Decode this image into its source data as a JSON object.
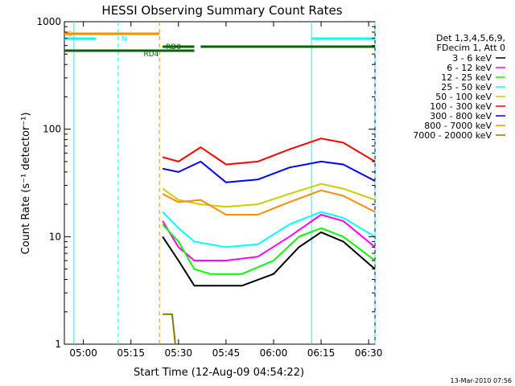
{
  "chart_data": {
    "type": "line",
    "title": "HESSI Observing Summary Count Rates",
    "xlabel": "Start Time (12-Aug-09 04:54:22)",
    "ylabel": "Count Rate (s⁻¹ detector⁻¹)",
    "y_scale": "log",
    "ylim": [
      1,
      1000
    ],
    "x_unit": "minutes",
    "xlim": [
      "04:54",
      "06:32"
    ],
    "x_ticks": [
      {
        "t": "05:00",
        "label": "05:00"
      },
      {
        "t": "05:15",
        "label": "05:15"
      },
      {
        "t": "05:30",
        "label": "05:30"
      },
      {
        "t": "05:45",
        "label": "05:45"
      },
      {
        "t": "06:00",
        "label": "06:00"
      },
      {
        "t": "06:15",
        "label": "06:15"
      },
      {
        "t": "06:30",
        "label": "06:30"
      }
    ],
    "y_ticks": [
      {
        "v": 1,
        "label": "1"
      },
      {
        "v": 10,
        "label": "10"
      },
      {
        "v": 100,
        "label": "100"
      },
      {
        "v": 1000,
        "label": "1000"
      }
    ],
    "legend_header": [
      "Det 1,3,4,5,6,9,",
      "FDecim 1, Att 0"
    ],
    "legend_position": "top-right",
    "series": [
      {
        "name": "3 - 6 keV",
        "color": "#000000",
        "points": [
          [
            "05:25",
            10
          ],
          [
            "05:30",
            6
          ],
          [
            "05:35",
            3.5
          ],
          [
            "05:40",
            3.5
          ],
          [
            "05:50",
            3.5
          ],
          [
            "06:00",
            4.5
          ],
          [
            "06:08",
            8
          ],
          [
            "06:15",
            11
          ],
          [
            "06:22",
            9
          ],
          [
            "06:32",
            5
          ]
        ]
      },
      {
        "name": "6 - 12 keV",
        "color": "#ff00ff",
        "points": [
          [
            "05:25",
            14
          ],
          [
            "05:30",
            8
          ],
          [
            "05:35",
            6
          ],
          [
            "05:45",
            6
          ],
          [
            "05:55",
            6.5
          ],
          [
            "06:05",
            10
          ],
          [
            "06:15",
            16
          ],
          [
            "06:22",
            14
          ],
          [
            "06:32",
            8
          ]
        ]
      },
      {
        "name": "12 - 25 keV",
        "color": "#00ff00",
        "points": [
          [
            "05:25",
            13
          ],
          [
            "05:30",
            9
          ],
          [
            "05:35",
            5
          ],
          [
            "05:40",
            4.5
          ],
          [
            "05:50",
            4.5
          ],
          [
            "06:00",
            6
          ],
          [
            "06:08",
            10
          ],
          [
            "06:15",
            12
          ],
          [
            "06:22",
            10
          ],
          [
            "06:32",
            6
          ]
        ]
      },
      {
        "name": "25 - 50 keV",
        "color": "#00ffff",
        "points": [
          [
            "05:25",
            17
          ],
          [
            "05:30",
            12
          ],
          [
            "05:35",
            9
          ],
          [
            "05:45",
            8
          ],
          [
            "05:55",
            8.5
          ],
          [
            "06:05",
            13
          ],
          [
            "06:15",
            17
          ],
          [
            "06:22",
            15
          ],
          [
            "06:32",
            10
          ]
        ]
      },
      {
        "name": "50 - 100 keV",
        "color": "#cccc00",
        "points": [
          [
            "05:25",
            28
          ],
          [
            "05:30",
            22
          ],
          [
            "05:37",
            20
          ],
          [
            "05:45",
            19
          ],
          [
            "05:55",
            20
          ],
          [
            "06:05",
            25
          ],
          [
            "06:15",
            31
          ],
          [
            "06:22",
            28
          ],
          [
            "06:32",
            22
          ]
        ]
      },
      {
        "name": "100 - 300 keV",
        "color": "#ff0000",
        "points": [
          [
            "05:25",
            55
          ],
          [
            "05:30",
            50
          ],
          [
            "05:37",
            68
          ],
          [
            "05:45",
            47
          ],
          [
            "05:55",
            50
          ],
          [
            "06:05",
            65
          ],
          [
            "06:15",
            82
          ],
          [
            "06:22",
            75
          ],
          [
            "06:32",
            50
          ]
        ]
      },
      {
        "name": "300 - 800 keV",
        "color": "#0000ff",
        "points": [
          [
            "05:25",
            43
          ],
          [
            "05:30",
            40
          ],
          [
            "05:37",
            50
          ],
          [
            "05:45",
            32
          ],
          [
            "05:55",
            34
          ],
          [
            "06:05",
            44
          ],
          [
            "06:15",
            50
          ],
          [
            "06:22",
            47
          ],
          [
            "06:32",
            33
          ]
        ]
      },
      {
        "name": "800 - 7000 keV",
        "color": "#ff8c00",
        "points": [
          [
            "05:25",
            25
          ],
          [
            "05:30",
            21
          ],
          [
            "05:37",
            22
          ],
          [
            "05:45",
            16
          ],
          [
            "05:55",
            16
          ],
          [
            "06:05",
            21
          ],
          [
            "06:15",
            27
          ],
          [
            "06:22",
            24
          ],
          [
            "06:32",
            17
          ]
        ]
      },
      {
        "name": "7000 - 20000 keV",
        "color": "#8b7500",
        "points": [
          [
            "05:25",
            1.9
          ],
          [
            "05:28",
            1.9
          ],
          [
            "05:29",
            1
          ]
        ]
      }
    ],
    "flags": [
      {
        "label": "S",
        "color": "#ff8c00",
        "start": "04:54",
        "end": "05:24"
      },
      {
        "label": "N",
        "color": "#00ffff",
        "start": "04:54",
        "end": "05:04"
      },
      {
        "label": "N",
        "color": "#00ffff",
        "start": "06:12",
        "end": "06:32"
      },
      {
        "label": "RD4",
        "color": "#006400",
        "start": "04:54",
        "end": "05:35"
      },
      {
        "label": "RD0",
        "color": "#006400",
        "start": "05:25",
        "end": "05:35"
      },
      {
        "label": "RD0",
        "color": "#006400",
        "start": "05:37",
        "end": "06:32"
      }
    ],
    "vertical_markers": [
      {
        "t": "04:57",
        "color": "#00ffff",
        "style": "solid"
      },
      {
        "t": "05:11",
        "color": "#00ffff",
        "style": "dashed"
      },
      {
        "t": "05:24",
        "color": "#ff8c00",
        "style": "dashed"
      },
      {
        "t": "06:12",
        "color": "#00ffff",
        "style": "solid"
      },
      {
        "t": "06:32",
        "color": "#00ffff",
        "style": "dashed"
      }
    ]
  },
  "timestamp": "13-Mar-2010 07:56"
}
